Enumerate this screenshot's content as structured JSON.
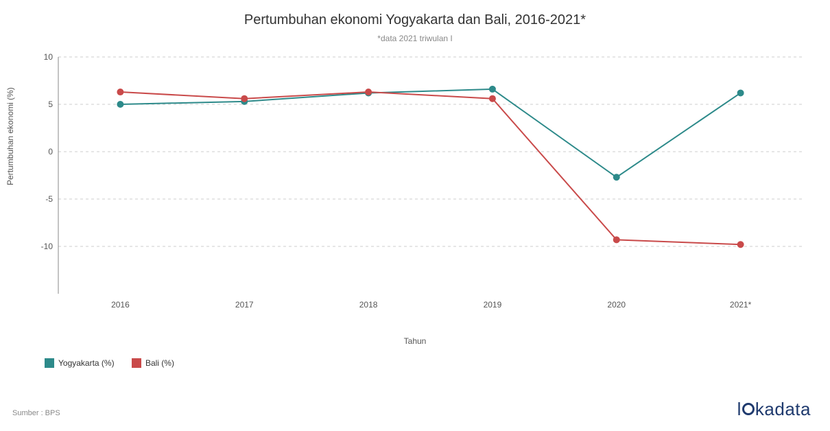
{
  "chart": {
    "type": "line",
    "title": "Pertumbuhan ekonomi Yogyakarta dan Bali, 2016-2021*",
    "subtitle": "*data 2021 triwulan I",
    "xlabel": "Tahun",
    "ylabel": "Pertumbuhan ekonomi (%)",
    "categories": [
      "2016",
      "2017",
      "2018",
      "2019",
      "2020",
      "2021*"
    ],
    "ylim": [
      -15,
      10
    ],
    "yticks": [
      -10,
      -5,
      0,
      5,
      10
    ],
    "grid_color": "#cccccc",
    "grid_dash": "4 4",
    "axis_line_color": "#888888",
    "background_color": "#ffffff",
    "tick_fontsize": 12,
    "title_fontsize": 20,
    "subtitle_fontsize": 12,
    "line_width": 2,
    "marker_radius": 5,
    "series": [
      {
        "name": "Yogyakarta (%)",
        "color": "#2d8a8a",
        "values": [
          5.0,
          5.3,
          6.2,
          6.6,
          -2.7,
          6.2
        ]
      },
      {
        "name": "Bali (%)",
        "color": "#c94a4a",
        "values": [
          6.3,
          5.6,
          6.3,
          5.6,
          -9.3,
          -9.8
        ]
      }
    ]
  },
  "legend": {
    "items": [
      {
        "label": "Yogyakarta (%)",
        "color": "#2d8a8a"
      },
      {
        "label": "Bali (%)",
        "color": "#c94a4a"
      }
    ]
  },
  "source": "Sumber : BPS",
  "brand": "lokadata"
}
